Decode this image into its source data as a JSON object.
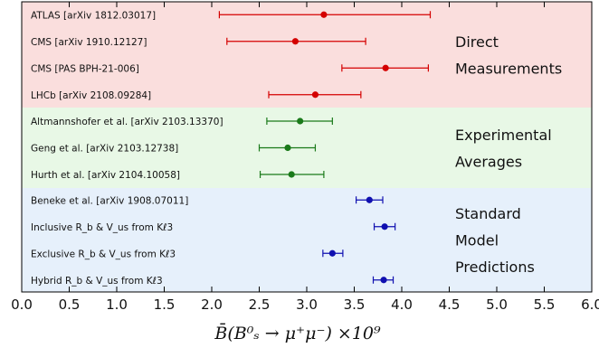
{
  "chart_data": {
    "type": "scatter",
    "subtype": "horizontal-errorbar",
    "xlabel": "B̄(B⁰ₛ → μ⁺μ⁻) ×10⁹",
    "xlim": [
      0.0,
      6.0
    ],
    "xticks": [
      "0.0",
      "0.5",
      "1.0",
      "1.5",
      "2.0",
      "2.5",
      "3.0",
      "3.5",
      "4.0",
      "4.5",
      "5.0",
      "5.5",
      "6.0"
    ],
    "grid": false,
    "legend": "none",
    "groups": [
      {
        "name": "Direct Measurements",
        "label_lines": [
          "Direct",
          "Measurements"
        ],
        "background": "#fadedd",
        "color": "#d40000",
        "entries": [
          {
            "label": "ATLAS [arXiv 1812.03017]",
            "value": 3.18,
            "low": 2.08,
            "high": 4.3
          },
          {
            "label": "CMS [arXiv 1910.12127]",
            "value": 2.88,
            "low": 2.16,
            "high": 3.62
          },
          {
            "label": "CMS [PAS BPH-21-006]",
            "value": 3.83,
            "low": 3.37,
            "high": 4.28
          },
          {
            "label": "LHCb [arXiv 2108.09284]",
            "value": 3.09,
            "low": 2.6,
            "high": 3.57
          }
        ]
      },
      {
        "name": "Experimental Averages",
        "label_lines": [
          "Experimental",
          "Averages"
        ],
        "background": "#e8f8e6",
        "color": "#1a7a1a",
        "entries": [
          {
            "label": "Altmannshofer et al. [arXiv 2103.13370]",
            "value": 2.93,
            "low": 2.58,
            "high": 3.27
          },
          {
            "label": "Geng et al. [arXiv 2103.12738]",
            "value": 2.8,
            "low": 2.5,
            "high": 3.09
          },
          {
            "label": "Hurth et al. [arXiv 2104.10058]",
            "value": 2.84,
            "low": 2.51,
            "high": 3.18
          }
        ]
      },
      {
        "name": "Standard Model Predictions",
        "label_lines": [
          "Standard",
          "Model",
          "Predictions"
        ],
        "background": "#e6f0fb",
        "color": "#1010b0",
        "entries": [
          {
            "label": "Beneke et al. [arXiv 1908.07011]",
            "value": 3.66,
            "low": 3.52,
            "high": 3.8
          },
          {
            "label": "Inclusive R_b & V_us from Kℓ3",
            "value": 3.82,
            "low": 3.71,
            "high": 3.93
          },
          {
            "label": "Exclusive R_b & V_us from Kℓ3",
            "value": 3.27,
            "low": 3.17,
            "high": 3.38
          },
          {
            "label": "Hybrid R_b & V_us from Kℓ3",
            "value": 3.81,
            "low": 3.7,
            "high": 3.91
          }
        ]
      }
    ]
  }
}
